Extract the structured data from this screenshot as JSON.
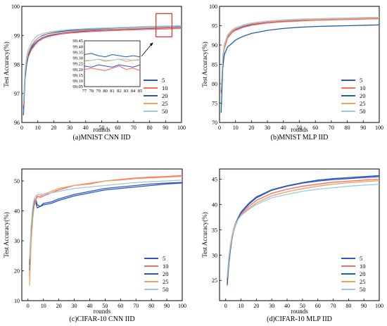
{
  "figure": {
    "series_colors": [
      "#3a4fd4",
      "#ff6a5c",
      "#1f5ea8",
      "#f2a05a",
      "#9ec8e0"
    ]
  },
  "chart_data": [
    {
      "type": "line",
      "title": "(a)MNIST CNN IID",
      "xlabel": "rounds",
      "ylabel": "Test Accuracy(%)",
      "xlim": [
        0,
        100
      ],
      "ylim": [
        96,
        100
      ],
      "xticks": [
        0,
        10,
        20,
        30,
        40,
        50,
        60,
        70,
        80,
        90,
        100
      ],
      "yticks": [
        96,
        97,
        98,
        99,
        100
      ],
      "grid": false,
      "legend": "bottom-right",
      "x": [
        1,
        2,
        3,
        4,
        6,
        8,
        10,
        13,
        16,
        20,
        25,
        30,
        40,
        50,
        60,
        70,
        80,
        90,
        100
      ],
      "series": [
        {
          "name": "5",
          "values": [
            96.5,
            97.6,
            98.05,
            98.3,
            98.55,
            98.7,
            98.82,
            98.92,
            98.98,
            99.03,
            99.07,
            99.1,
            99.15,
            99.18,
            99.2,
            99.22,
            99.24,
            99.26,
            99.28
          ]
        },
        {
          "name": "10",
          "values": [
            96.45,
            97.55,
            98.0,
            98.25,
            98.5,
            98.65,
            98.78,
            98.88,
            98.95,
            99.0,
            99.05,
            99.08,
            99.12,
            99.15,
            99.17,
            99.19,
            99.21,
            99.22,
            99.24
          ]
        },
        {
          "name": "20",
          "values": [
            96.25,
            97.5,
            98.0,
            98.3,
            98.6,
            98.78,
            98.9,
            99.0,
            99.05,
            99.1,
            99.14,
            99.17,
            99.2,
            99.23,
            99.26,
            99.28,
            99.3,
            99.31,
            99.33
          ]
        },
        {
          "name": "25",
          "values": [
            96.6,
            97.7,
            98.15,
            98.4,
            98.65,
            98.8,
            98.9,
            98.98,
            99.04,
            99.08,
            99.11,
            99.14,
            99.18,
            99.2,
            99.22,
            99.24,
            99.26,
            99.28,
            99.3
          ]
        },
        {
          "name": "50",
          "values": [
            96.7,
            97.8,
            98.25,
            98.5,
            98.75,
            98.9,
            99.0,
            99.06,
            99.1,
            99.14,
            99.17,
            99.2,
            99.23,
            99.25,
            99.27,
            99.29,
            99.31,
            99.32,
            99.34
          ]
        }
      ],
      "inset": {
        "x": [
          77,
          78,
          79,
          80,
          81,
          82,
          83,
          84,
          85
        ],
        "xlim": [
          77,
          85
        ],
        "ylim": [
          99.05,
          99.45
        ],
        "xticks": [
          77,
          78,
          79,
          80,
          81,
          82,
          83,
          84,
          85
        ],
        "yticks": [
          "99.05",
          "99.10",
          "99.15",
          "99.20",
          "99.25",
          "99.30",
          "99.35",
          "99.40",
          "99.45"
        ],
        "series": [
          {
            "name": "5",
            "values": [
              99.23,
              99.22,
              99.24,
              99.23,
              99.22,
              99.24,
              99.23,
              99.22,
              99.24
            ]
          },
          {
            "name": "10",
            "values": [
              99.2,
              99.21,
              99.2,
              99.19,
              99.21,
              99.23,
              99.2,
              99.21,
              99.19
            ]
          },
          {
            "name": "20",
            "values": [
              99.33,
              99.34,
              99.32,
              99.31,
              99.33,
              99.32,
              99.31,
              99.32,
              99.31
            ]
          },
          {
            "name": "25",
            "values": [
              99.27,
              99.28,
              99.29,
              99.27,
              99.28,
              99.29,
              99.27,
              99.28,
              99.28
            ]
          },
          {
            "name": "50",
            "values": [
              99.28,
              99.28,
              99.29,
              99.28,
              99.28,
              99.29,
              99.29,
              99.28,
              99.29
            ]
          }
        ]
      }
    },
    {
      "type": "line",
      "title": "(b)MNIST MLP IID",
      "xlabel": "rounds",
      "ylabel": "Test Accuracy(%)",
      "xlim": [
        0,
        100
      ],
      "ylim": [
        70,
        100
      ],
      "xticks": [
        0,
        10,
        20,
        30,
        40,
        50,
        60,
        70,
        80,
        90,
        100
      ],
      "yticks": [
        70,
        75,
        80,
        85,
        90,
        95,
        100
      ],
      "grid": false,
      "legend": "bottom-right",
      "x": [
        1,
        2,
        3,
        5,
        8,
        10,
        15,
        20,
        30,
        40,
        50,
        60,
        70,
        80,
        90,
        100
      ],
      "series": [
        {
          "name": "5",
          "values": [
            78.0,
            86.0,
            89.5,
            92.0,
            93.5,
            94.0,
            94.8,
            95.3,
            95.8,
            96.1,
            96.3,
            96.5,
            96.6,
            96.7,
            96.8,
            96.9
          ]
        },
        {
          "name": "10",
          "values": [
            77.5,
            85.5,
            89.0,
            91.8,
            93.3,
            93.8,
            94.6,
            95.1,
            95.7,
            96.0,
            96.2,
            96.4,
            96.5,
            96.6,
            96.7,
            96.8
          ]
        },
        {
          "name": "20",
          "values": [
            72.5,
            84.0,
            87.5,
            89.5,
            90.5,
            91.3,
            92.3,
            93.0,
            93.8,
            94.3,
            94.6,
            94.8,
            94.9,
            95.0,
            95.1,
            95.2
          ]
        },
        {
          "name": "25",
          "values": [
            78.5,
            86.5,
            89.8,
            92.3,
            93.7,
            94.2,
            95.0,
            95.5,
            96.0,
            96.3,
            96.5,
            96.6,
            96.7,
            96.8,
            96.9,
            97.0
          ]
        },
        {
          "name": "50",
          "values": [
            79.0,
            87.0,
            90.2,
            92.6,
            94.0,
            94.5,
            95.2,
            95.7,
            96.2,
            96.5,
            96.7,
            96.8,
            96.9,
            97.0,
            97.1,
            97.2
          ]
        }
      ]
    },
    {
      "type": "line",
      "title": "(c)CIFAR-10 CNN IID",
      "xlabel": "rounds",
      "ylabel": "Test Accuracy(%)",
      "xlim": [
        -4,
        100
      ],
      "ylim": [
        10,
        54
      ],
      "xticks": [
        0,
        10,
        20,
        30,
        40,
        50,
        60,
        70,
        80,
        90,
        100
      ],
      "yticks": [
        10,
        20,
        30,
        40,
        50
      ],
      "grid": false,
      "legend": "bottom-right",
      "x": [
        1,
        2,
        3,
        4,
        5,
        6,
        8,
        10,
        15,
        20,
        30,
        40,
        50,
        60,
        70,
        80,
        90,
        100
      ],
      "series": [
        {
          "name": "5",
          "values": [
            22,
            33,
            40,
            43,
            44,
            42,
            41.5,
            42.5,
            43,
            44,
            45.5,
            46.5,
            47.5,
            48,
            48.5,
            49,
            49.3,
            49.5
          ]
        },
        {
          "name": "10",
          "values": [
            18,
            30,
            38,
            42,
            44,
            45,
            44.5,
            45,
            46,
            47,
            48.5,
            49,
            50,
            50.5,
            51,
            51.3,
            51.5,
            51.8
          ]
        },
        {
          "name": "20",
          "values": [
            20,
            31,
            38,
            42,
            43,
            41,
            41.5,
            42,
            42.5,
            43.5,
            45,
            46,
            47,
            47.5,
            48,
            48.5,
            49,
            49.3
          ]
        },
        {
          "name": "25",
          "values": [
            15,
            29,
            37,
            41.5,
            43.5,
            44.5,
            45,
            45.5,
            46.5,
            47.5,
            48.5,
            49.3,
            50,
            50.3,
            50.8,
            51,
            51.3,
            51.5
          ]
        },
        {
          "name": "50",
          "values": [
            24,
            35,
            41,
            44,
            45,
            45.5,
            45.5,
            45.5,
            46,
            46.5,
            47.5,
            48,
            48.5,
            49,
            49.5,
            49.8,
            50,
            50.3
          ]
        }
      ]
    },
    {
      "type": "line",
      "title": "(d)CIFAR-10 MLP IID",
      "xlabel": "rounds",
      "ylabel": "Test Accuracy(%)",
      "xlim": [
        -4,
        100
      ],
      "ylim": [
        21,
        47
      ],
      "xticks": [
        0,
        10,
        20,
        30,
        40,
        50,
        60,
        70,
        80,
        90,
        100
      ],
      "yticks": [
        25,
        30,
        35,
        40,
        45
      ],
      "grid": false,
      "legend": "bottom-right",
      "x": [
        1,
        2,
        3,
        4,
        5,
        6,
        8,
        10,
        15,
        20,
        30,
        40,
        50,
        60,
        70,
        80,
        90,
        100
      ],
      "series": [
        {
          "name": "5",
          "values": [
            25,
            29,
            31.5,
            33.5,
            35,
            36,
            37.3,
            38.3,
            40,
            41.3,
            42.8,
            43.6,
            44.2,
            44.6,
            44.9,
            45.1,
            45.3,
            45.5
          ]
        },
        {
          "name": "10",
          "values": [
            24.5,
            28.5,
            31,
            33,
            34.5,
            35.5,
            37,
            38,
            39.6,
            40.8,
            42.2,
            43,
            43.6,
            44,
            44.4,
            44.6,
            44.8,
            45
          ]
        },
        {
          "name": "20",
          "values": [
            24,
            28,
            30.8,
            33,
            34.6,
            35.8,
            37.3,
            38.5,
            40.2,
            41.5,
            42.9,
            43.7,
            44.3,
            44.8,
            45.1,
            45.3,
            45.5,
            45.7
          ]
        },
        {
          "name": "25",
          "values": [
            25.5,
            29,
            31.5,
            33.3,
            34.7,
            35.7,
            37,
            37.8,
            39.2,
            40.3,
            41.7,
            42.5,
            43.1,
            43.6,
            44,
            44.3,
            44.5,
            44.7
          ]
        },
        {
          "name": "50",
          "values": [
            26,
            29.5,
            32,
            33.8,
            35,
            35.9,
            37,
            37.8,
            39,
            40,
            41.3,
            42,
            42.6,
            43,
            43.3,
            43.6,
            43.8,
            44
          ]
        }
      ]
    }
  ]
}
